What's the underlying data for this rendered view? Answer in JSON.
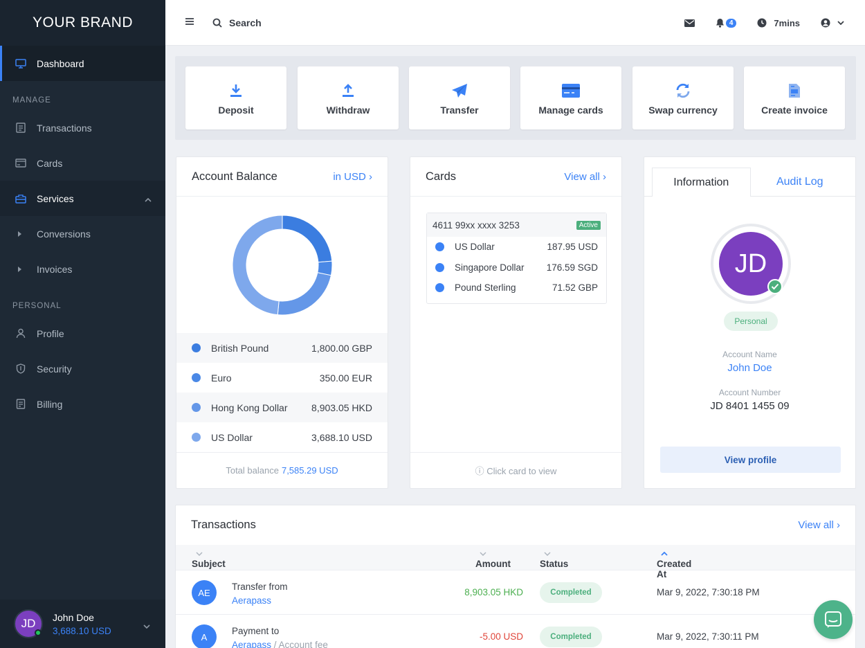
{
  "brand": "YOUR BRAND",
  "sidebar": {
    "dashboard": "Dashboard",
    "manage_label": "MANAGE",
    "transactions": "Transactions",
    "cards": "Cards",
    "services": "Services",
    "conversions": "Conversions",
    "invoices": "Invoices",
    "personal_label": "PERSONAL",
    "profile": "Profile",
    "security": "Security",
    "billing": "Billing",
    "user": {
      "initials": "JD",
      "name": "John Doe",
      "balance": "3,688.10 USD"
    }
  },
  "topbar": {
    "search_label": "Search",
    "notifications_count": "4",
    "session_time": "7mins"
  },
  "quick_actions": [
    {
      "label": "Deposit",
      "icon": "download-icon"
    },
    {
      "label": "Withdraw",
      "icon": "upload-icon"
    },
    {
      "label": "Transfer",
      "icon": "paper-plane-icon"
    },
    {
      "label": "Manage cards",
      "icon": "credit-card-icon"
    },
    {
      "label": "Swap currency",
      "icon": "refresh-icon"
    },
    {
      "label": "Create invoice",
      "icon": "invoice-icon"
    }
  ],
  "account_balance": {
    "title": "Account Balance",
    "currency_link": "in USD ›",
    "rows": [
      {
        "name": "British Pound",
        "amount": "1,800.00 GBP",
        "color": "#3b7de0"
      },
      {
        "name": "Euro",
        "amount": "350.00 EUR",
        "color": "#4a88e6"
      },
      {
        "name": "Hong Kong Dollar",
        "amount": "8,903.05 HKD",
        "color": "#6497e8"
      },
      {
        "name": "US Dollar",
        "amount": "3,688.10 USD",
        "color": "#7ea8ec"
      }
    ],
    "total_label": "Total balance",
    "total_value": "7,585.29 USD",
    "donut_shares": [
      0.237,
      0.046,
      0.232,
      0.485
    ]
  },
  "cards_panel": {
    "title": "Cards",
    "view_all": "View all ›",
    "card_number": "4611 99xx xxxx 3253",
    "card_status": "Active",
    "currencies": [
      {
        "name": "US Dollar",
        "amount": "187.95 USD"
      },
      {
        "name": "Singapore Dollar",
        "amount": "176.59 SGD"
      },
      {
        "name": "Pound Sterling",
        "amount": "71.52 GBP"
      }
    ],
    "click_note": "ⓘ Click card to view"
  },
  "info_panel": {
    "tab_information": "Information",
    "tab_audit": "Audit Log",
    "initials": "JD",
    "account_type": "Personal",
    "account_name_label": "Account Name",
    "account_name": "John Doe",
    "account_number_label": "Account Number",
    "account_number": "JD 8401 1455 09",
    "view_profile": "View profile"
  },
  "transactions": {
    "title": "Transactions",
    "view_all": "View all ›",
    "columns": {
      "subject": "Subject",
      "amount": "Amount",
      "status": "Status",
      "created": "Created At"
    },
    "rows": [
      {
        "initials": "AE",
        "line1": "Transfer from",
        "link": "Aerapass",
        "extra": "",
        "amount": "8,903.05 HKD",
        "amount_color": "#4caf50",
        "status": "Completed",
        "date": "Mar 9, 2022, 7:30:18 PM"
      },
      {
        "initials": "A",
        "line1": "Payment to",
        "link": "Aerapass",
        "extra": " / Account fee",
        "amount": "-5.00 USD",
        "amount_color": "#e0453a",
        "status": "Completed",
        "date": "Mar 9, 2022, 7:30:11 PM"
      }
    ]
  }
}
